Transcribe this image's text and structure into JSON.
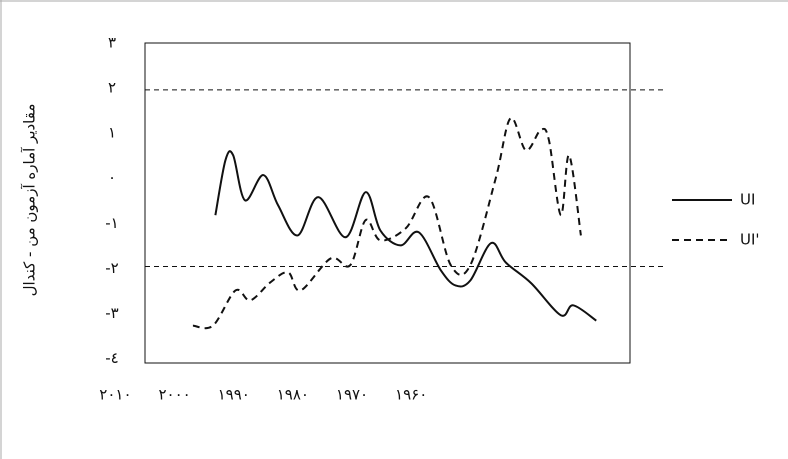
{
  "chart_data": {
    "type": "line",
    "y_label": "مقادیر آماره آزمون من - کندال",
    "xlim": [
      2005,
      1923
    ],
    "xticks": [
      {
        "value": 2010,
        "label": "۲۰۱۰"
      },
      {
        "value": 2000,
        "label": "۲۰۰۰"
      },
      {
        "value": 1990,
        "label": "۱۹۹۰"
      },
      {
        "value": 1980,
        "label": "۱۹۸۰"
      },
      {
        "value": 1970,
        "label": "۱۹۷۰"
      },
      {
        "value": 1960,
        "label": "۱۹۶۰"
      }
    ],
    "ylim": [
      -4.1,
      3
    ],
    "yticks": [
      {
        "value": 3,
        "label": "۳"
      },
      {
        "value": 2,
        "label": "۲"
      },
      {
        "value": 1,
        "label": "۱"
      },
      {
        "value": 0,
        "label": "۰"
      },
      {
        "value": -1,
        "label": "-۱"
      },
      {
        "value": -2,
        "label": "-۲"
      },
      {
        "value": -3,
        "label": "-۳"
      },
      {
        "value": -4,
        "label": "-٤"
      }
    ],
    "reference_lines": [
      1.96,
      -1.96
    ],
    "series": [
      {
        "name": "UI",
        "color": "#111111",
        "dash": false,
        "x": [
          1993.1,
          1991.4,
          1990.1,
          1988.1,
          1985,
          1982.5,
          1979.2,
          1975.7,
          1971.1,
          1967.7,
          1965.2,
          1961.8,
          1958.7,
          1955,
          1952.5,
          1950,
          1946.5,
          1944,
          1939.7,
          1934.7,
          1932.6,
          1928.7
        ],
        "values": [
          -0.82,
          0.4,
          0.51,
          -0.49,
          0.07,
          -0.6,
          -1.27,
          -0.42,
          -1.31,
          -0.31,
          -1.16,
          -1.49,
          -1.2,
          -2.04,
          -2.38,
          -2.27,
          -1.44,
          -1.87,
          -2.33,
          -3.04,
          -2.82,
          -3.16
        ]
      },
      {
        "name": "UI'",
        "color": "#111111",
        "dash": true,
        "x": [
          1996.9,
          1993.5,
          1989.7,
          1987.2,
          1983.8,
          1980.8,
          1978.7,
          1973.6,
          1970.3,
          1967.7,
          1965.2,
          1960.9,
          1957,
          1953.3,
          1950,
          1945.7,
          1943.2,
          1940.6,
          1938.1,
          1936.7,
          1934.7,
          1933.3,
          1931.3
        ],
        "values": [
          -3.27,
          -3.27,
          -2.49,
          -2.71,
          -2.31,
          -2.09,
          -2.49,
          -1.78,
          -1.93,
          -0.93,
          -1.38,
          -1.11,
          -0.42,
          -1.93,
          -1.93,
          0,
          1.33,
          0.62,
          1.07,
          0.84,
          -0.82,
          0.51,
          -1.27
        ]
      }
    ]
  }
}
